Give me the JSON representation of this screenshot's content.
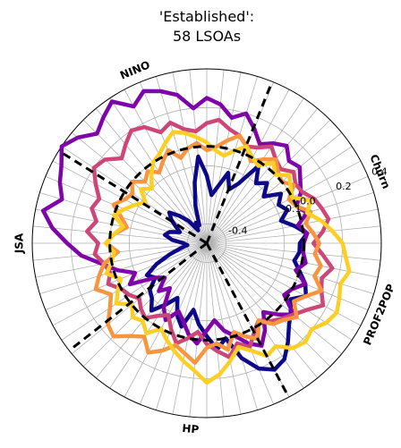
{
  "chart_data": {
    "type": "line",
    "subtype": "polar",
    "title_line1": "'Established':",
    "title_line2": "58 LSOAs",
    "r_range": [
      -0.5,
      0.4
    ],
    "r_ticks": [
      {
        "value": -0.4,
        "label": "-0.4"
      },
      {
        "value": -0.1,
        "label": "-0.1"
      },
      {
        "value": 0.0,
        "label": "0.0"
      },
      {
        "value": 0.2,
        "label": "0.2"
      },
      {
        "value": 0.4,
        "label": "0.4"
      }
    ],
    "reference_circle_r": 0.0,
    "grid": true,
    "spoke_count": 64,
    "axis_labels": [
      {
        "label": "Churn",
        "angle_deg": 22.5
      },
      {
        "label": "NINO",
        "angle_deg": 112.5
      },
      {
        "label": "JSA",
        "angle_deg": 180
      },
      {
        "label": "HP",
        "angle_deg": 265
      },
      {
        "label": "PROF2POP",
        "angle_deg": 337.5
      }
    ],
    "boundary_angles_deg": [
      68,
      148,
      218,
      298
    ],
    "series": [
      {
        "color": "#0d0887",
        "values": [
          -0.02,
          0.02,
          -0.04,
          -0.1,
          -0.05,
          -0.08,
          -0.04,
          -0.12,
          -0.06,
          -0.1,
          -0.02,
          -0.15,
          -0.2,
          -0.12,
          -0.2,
          -0.25,
          -0.15,
          -0.05,
          -0.18,
          -0.3,
          -0.4,
          -0.38,
          -0.42,
          -0.35,
          -0.3,
          -0.25,
          -0.28,
          -0.32,
          -0.35,
          -0.3,
          -0.28,
          -0.32,
          -0.38,
          -0.4,
          -0.36,
          -0.3,
          -0.22,
          -0.15,
          -0.18,
          -0.12,
          -0.1,
          -0.05,
          -0.12,
          -0.18,
          -0.1,
          -0.05,
          -0.15,
          -0.08,
          -0.02,
          0.05,
          0.0,
          0.12,
          0.2,
          0.24,
          0.22,
          0.16,
          0.1,
          0.06,
          0.02,
          0.08,
          0.05,
          0.0,
          -0.04,
          -0.02
        ]
      },
      {
        "color": "#7e03a8",
        "values": [
          0.0,
          0.02,
          -0.02,
          0.04,
          0.0,
          0.05,
          0.08,
          0.12,
          0.1,
          0.15,
          0.12,
          0.08,
          0.14,
          0.2,
          0.16,
          0.22,
          0.25,
          0.2,
          0.28,
          0.32,
          0.35,
          0.3,
          0.38,
          0.34,
          0.3,
          0.36,
          0.4,
          0.35,
          0.32,
          0.28,
          0.36,
          0.3,
          0.22,
          0.15,
          0.05,
          -0.02,
          -0.1,
          -0.05,
          -0.18,
          -0.22,
          -0.15,
          -0.2,
          -0.1,
          -0.05,
          -0.12,
          -0.08,
          -0.02,
          0.02,
          -0.05,
          -0.1,
          -0.04,
          0.0,
          0.06,
          0.1,
          0.04,
          -0.04,
          0.02,
          0.08,
          -0.02,
          0.0,
          0.05,
          -0.02,
          0.02,
          0.0
        ]
      },
      {
        "color": "#cc4778",
        "values": [
          0.05,
          0.1,
          0.14,
          0.12,
          0.1,
          0.06,
          0.05,
          0.08,
          0.04,
          0.06,
          0.1,
          0.06,
          0.04,
          0.08,
          0.1,
          0.14,
          0.12,
          0.08,
          0.1,
          0.15,
          0.12,
          0.18,
          0.2,
          0.16,
          0.12,
          0.18,
          0.2,
          0.15,
          0.1,
          0.12,
          0.08,
          0.12,
          0.06,
          0.08,
          0.04,
          0.02,
          0.05,
          0.0,
          -0.02,
          -0.05,
          -0.02,
          0.0,
          -0.05,
          -0.08,
          -0.02,
          0.04,
          0.0,
          -0.04,
          0.02,
          0.06,
          0.1,
          0.04,
          0.08,
          0.02,
          -0.02,
          0.02,
          0.05,
          0.08,
          0.12,
          0.18,
          0.14,
          0.12,
          0.16,
          0.1
        ]
      },
      {
        "color": "#f89540",
        "values": [
          0.08,
          0.05,
          0.02,
          0.06,
          0.0,
          -0.02,
          0.04,
          0.0,
          0.02,
          0.06,
          0.02,
          -0.02,
          0.04,
          0.08,
          0.04,
          0.0,
          -0.02,
          0.02,
          0.0,
          -0.04,
          0.02,
          -0.02,
          -0.06,
          -0.02,
          -0.05,
          0.0,
          -0.04,
          -0.02,
          0.02,
          -0.04,
          -0.08,
          -0.02,
          0.02,
          -0.04,
          0.04,
          0.08,
          0.12,
          0.06,
          0.1,
          0.16,
          0.18,
          0.12,
          0.08,
          0.14,
          0.1,
          0.05,
          0.08,
          0.12,
          0.04,
          0.02,
          0.06,
          -0.02,
          0.02,
          0.06,
          -0.02,
          0.04,
          0.06,
          0.1,
          0.04,
          0.08,
          0.14,
          0.08,
          0.1,
          0.06
        ]
      },
      {
        "color": "#fccf25",
        "values": [
          0.2,
          0.15,
          0.1,
          0.04,
          0.08,
          0.0,
          0.02,
          0.05,
          0.0,
          0.04,
          -0.02,
          0.0,
          0.04,
          0.0,
          -0.04,
          -0.02,
          0.02,
          0.05,
          0.08,
          0.1,
          0.06,
          0.02,
          0.0,
          -0.05,
          -0.1,
          -0.06,
          -0.12,
          -0.08,
          -0.04,
          0.0,
          -0.06,
          -0.02,
          0.02,
          -0.02,
          0.0,
          0.04,
          -0.02,
          0.02,
          0.06,
          0.0,
          0.04,
          0.02,
          0.06,
          0.0,
          0.04,
          0.08,
          0.12,
          0.16,
          0.22,
          0.18,
          0.12,
          0.06,
          0.1,
          0.16,
          0.14,
          0.2,
          0.22,
          0.2,
          0.24,
          0.26,
          0.24,
          0.22,
          0.25,
          0.22
        ]
      }
    ]
  }
}
